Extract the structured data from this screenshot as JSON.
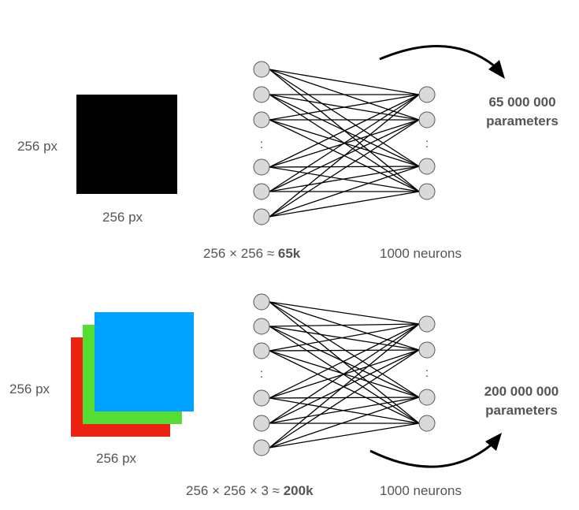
{
  "panels": [
    {
      "height_label": "256 px",
      "width_label": "256 px",
      "formula": {
        "prefix": "256 × 256 ≈ ",
        "bold": "65k"
      },
      "neurons_label": "1000 neurons",
      "params_line1": "65 000 000",
      "params_line2": "parameters",
      "channels": [
        "#000000"
      ]
    },
    {
      "height_label": "256 px",
      "width_label": "256 px",
      "formula": {
        "prefix": "256 × 256 × 3 ≈ ",
        "bold": "200k"
      },
      "neurons_label": "1000 neurons",
      "params_line1": "200 000 000",
      "params_line2": "parameters",
      "channels": [
        "#ee2211",
        "#55dd33",
        "#00a2ff"
      ]
    }
  ],
  "network": {
    "input_nodes_shown": 6,
    "output_nodes_shown": 4,
    "ellipsis": ":"
  },
  "colors": {
    "node_fill": "#d9d9d9",
    "node_stroke": "#555555",
    "edge": "#000000",
    "arrow": "#000000"
  }
}
